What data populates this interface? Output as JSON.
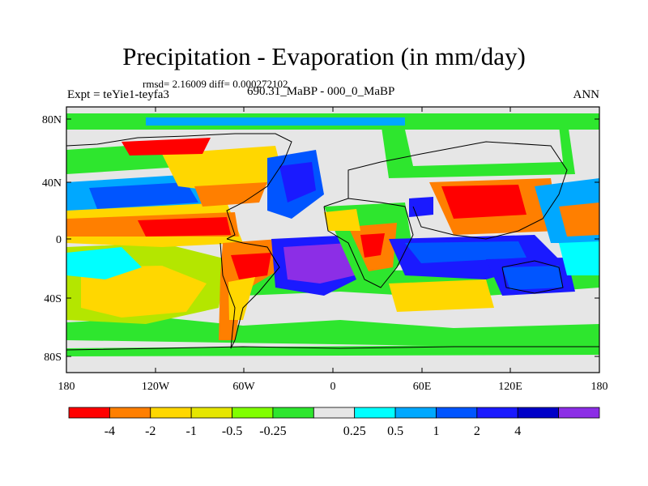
{
  "title": "Precipitation - Evaporation (in mm/day)",
  "stats": "rmsd= 2.16009 diff= 0.000272102",
  "experiment": "Expt = teYie1-teyfa3",
  "period": "690.31_MaBP - 000_0_MaBP",
  "season": "ANN",
  "lat_ticks": [
    "80N",
    "40N",
    "0",
    "40S",
    "80S"
  ],
  "lon_ticks": [
    "180",
    "120W",
    "60W",
    "0",
    "60E",
    "120E",
    "180"
  ],
  "colorbar": {
    "labels": [
      "-4",
      "-2",
      "-1",
      "-0.5",
      "-0.25",
      "0.25",
      "0.5",
      "1",
      "2",
      "4"
    ],
    "colors": [
      "#ff0000",
      "#ff7f00",
      "#ffd700",
      "#e6e600",
      "#80ff00",
      "#2ee62e",
      "#e6e6e6",
      "#00ffff",
      "#00a8ff",
      "#0055ff",
      "#1a1aff",
      "#0000c8",
      "#8c2ee6"
    ]
  },
  "map_colors": {
    "background": "#e6e6e6",
    "strong_dry": "#ff0000",
    "dry": "#ff7f00",
    "mild_dry": "#ffd700",
    "slight_dry": "#b4e600",
    "near_zero_dry": "#2ee62e",
    "slight_wet": "#00ffff",
    "wet": "#0055ff",
    "strong_wet": "#1a1aff",
    "very_wet": "#8c2ee6"
  }
}
